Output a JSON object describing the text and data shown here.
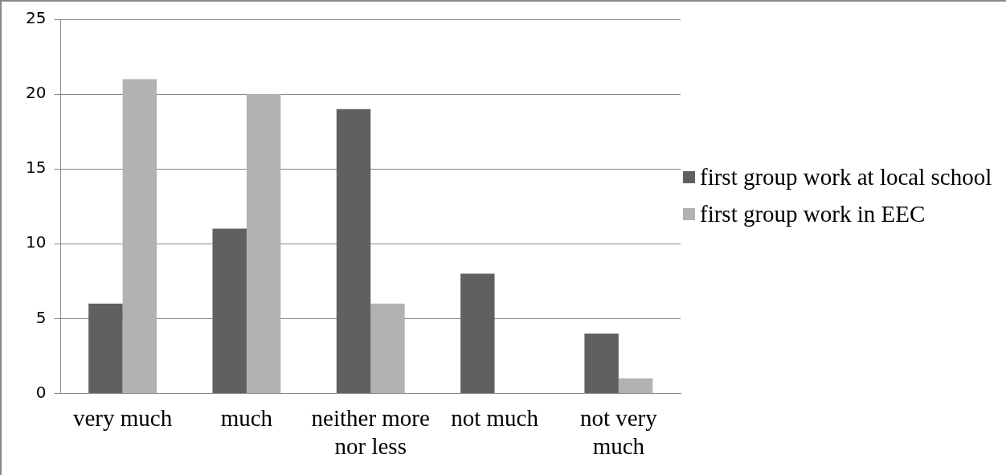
{
  "chart_data": {
    "type": "bar",
    "categories": [
      "very much",
      "much",
      "neither more nor less",
      "not much",
      "not very much"
    ],
    "series": [
      {
        "name": "first group work at local school",
        "color": "#606060",
        "values": [
          6,
          11,
          19,
          8,
          4
        ]
      },
      {
        "name": "first group work in EEC",
        "color": "#b2b2b2",
        "values": [
          21,
          20,
          6,
          0,
          1
        ]
      }
    ],
    "ylim": [
      0,
      25
    ],
    "yticks": [
      0,
      5,
      10,
      15,
      20,
      25
    ],
    "grid": "y",
    "legend": "right"
  }
}
